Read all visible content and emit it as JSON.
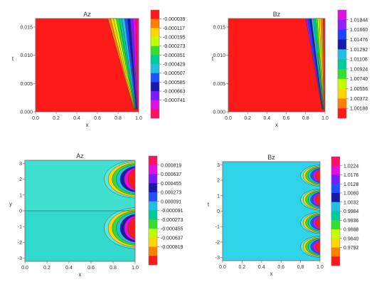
{
  "chart_data": [
    {
      "type": "heatmap",
      "title": "Az",
      "xlabel": "x",
      "ylabel": "t",
      "xlim": [
        0,
        1
      ],
      "ylim": [
        0,
        0.0165
      ],
      "xticks": [
        "0.0",
        "0.2",
        "0.4",
        "0.6",
        "0.8",
        "1.0"
      ],
      "xtick_values": [
        0,
        0.2,
        0.4,
        0.6,
        0.8,
        1.0
      ],
      "yticks": [
        "0.000",
        "0.005",
        "0.010",
        "0.015"
      ],
      "ytick_values": [
        0,
        0.005,
        0.01,
        0.015
      ],
      "legend": [
        "-0.000039",
        "-0.000117",
        "-0.000195",
        "-0.000273",
        "-0.000351",
        "-0.000429",
        "-0.000507",
        "-0.000585",
        "-0.000663",
        "-0.000741"
      ],
      "legend_colors": [
        "#ff1a1a",
        "#ff7f00",
        "#ffd700",
        "#bfff00",
        "#33dd33",
        "#00cc99",
        "#20c0e0",
        "#2050ff",
        "#1a1aaa",
        "#7a1aff",
        "#e010e0",
        "#ff1060"
      ],
      "front_x_at_tmin": 0.95,
      "front_x_at_tmax": 0.7,
      "max_abs_value": 0.000741,
      "grid": false,
      "legend_placement": "right"
    },
    {
      "type": "heatmap",
      "title": "Bz",
      "xlabel": "x",
      "ylabel": "t",
      "xlim": [
        0,
        1
      ],
      "ylim": [
        0,
        0.0165
      ],
      "xticks": [
        "0.0",
        "0.2",
        "0.4",
        "0.6",
        "0.8",
        "1.0"
      ],
      "xtick_values": [
        0,
        0.2,
        0.4,
        0.6,
        0.8,
        1.0
      ],
      "yticks": [
        "0.000",
        "0.005",
        "0.010",
        "0.015"
      ],
      "ytick_values": [
        0,
        0.005,
        0.01,
        0.015
      ],
      "legend": [
        "1.01844",
        "1.01660",
        "1.01476",
        "1.01292",
        "1.01108",
        "1.00924",
        "1.00740",
        "1.00556",
        "1.00372",
        "1.00188"
      ],
      "legend_colors": [
        "#e010e0",
        "#9020ff",
        "#2040ff",
        "#1a1aaa",
        "#20c0e0",
        "#00cc99",
        "#33dd33",
        "#bfff00",
        "#ffd700",
        "#ff7f00",
        "#ff1a1a"
      ],
      "front_x_at_tmin": 0.97,
      "front_x_at_tmax": 0.8,
      "max_value": 1.01844,
      "grid": false,
      "legend_placement": "right"
    },
    {
      "type": "heatmap",
      "title": "Az",
      "xlabel": "x",
      "ylabel": "y",
      "xlim": [
        0,
        1
      ],
      "ylim": [
        -3.2,
        3.2
      ],
      "xticks": [
        "0.0",
        "0.2",
        "0.4",
        "0.6",
        "0.8",
        "1.0"
      ],
      "xtick_values": [
        0,
        0.2,
        0.4,
        0.6,
        0.8,
        1.0
      ],
      "yticks": [
        "-3",
        "-2",
        "-1",
        "0",
        "1",
        "2",
        "3"
      ],
      "ytick_values": [
        -3,
        -2,
        -1,
        0,
        1,
        2,
        3
      ],
      "legend": [
        "0.000819",
        "0.000637",
        "0.000455",
        "0.000273",
        "0.000091",
        "-0.000091",
        "-0.000273",
        "-0.000455",
        "-0.000637",
        "-0.000819"
      ],
      "legend_colors": [
        "#ff1060",
        "#e010e0",
        "#7a1aff",
        "#1a1aaa",
        "#2050ff",
        "#20c0e0",
        "#00cc99",
        "#33dd33",
        "#bfff00",
        "#ffd700",
        "#ff7f00",
        "#ff1a1a"
      ],
      "background_color": "#33d9cc",
      "boundary_line_y": 0,
      "spots": [
        {
          "y": 2.0,
          "half_height": 1.2
        },
        {
          "y": -1.1,
          "half_height": 1.3
        }
      ],
      "spots_x_start": 0.72,
      "grid": false,
      "legend_placement": "right"
    },
    {
      "type": "heatmap",
      "title": "Bz",
      "xlabel": "x",
      "ylabel": "t",
      "xlim": [
        0,
        1
      ],
      "ylim": [
        -3.2,
        3.2
      ],
      "xticks": [
        "0.0",
        "0.2",
        "0.4",
        "0.6",
        "0.8",
        "1.0"
      ],
      "xtick_values": [
        0,
        0.2,
        0.4,
        0.6,
        0.8,
        1.0
      ],
      "yticks": [
        "-3",
        "-2",
        "-1",
        "0",
        "1",
        "2",
        "3"
      ],
      "ytick_values": [
        -3,
        -2,
        -1,
        0,
        1,
        2,
        3
      ],
      "legend": [
        "1.0224",
        "1.0176",
        "1.0128",
        "1.0080",
        "1.0032",
        "0.9984",
        "0.9936",
        "0.9888",
        "0.9840",
        "0.9792"
      ],
      "legend_colors": [
        "#ff1060",
        "#e010e0",
        "#7a1aff",
        "#2050ff",
        "#1a1aaa",
        "#20c0e0",
        "#00cc99",
        "#33dd33",
        "#bfff00",
        "#ffd700",
        "#ff7f00",
        "#ff1a1a"
      ],
      "background_color": "#30d4e8",
      "spots": [
        {
          "y": 2.3,
          "half_height": 0.7
        },
        {
          "y": 0.75,
          "half_height": 0.7
        },
        {
          "y": -0.75,
          "half_height": 0.7
        },
        {
          "y": -2.3,
          "half_height": 0.7
        }
      ],
      "spots_x_start": 0.8,
      "grid": false,
      "legend_placement": "right"
    }
  ]
}
